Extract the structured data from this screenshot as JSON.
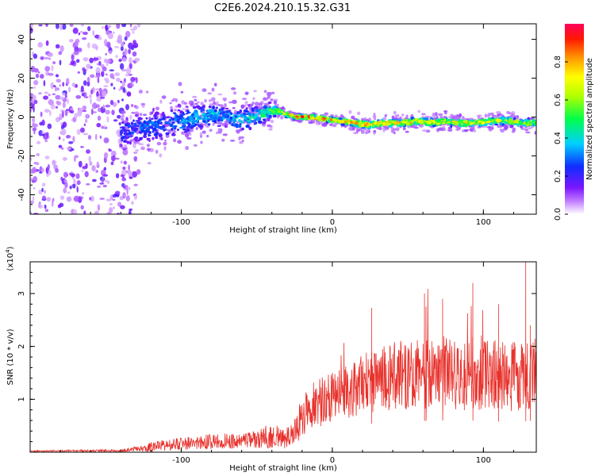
{
  "title": "C2E6.2024.210.15.32.G31",
  "chart_data": [
    {
      "type": "heatmap",
      "xlabel": "Height of straight line (km)",
      "ylabel": "Frequency (Hz)",
      "xlim": [
        -200,
        135
      ],
      "ylim": [
        -50,
        48
      ],
      "x_ticks": [
        {
          "value": -100,
          "label": "-100"
        },
        {
          "value": 0,
          "label": "0"
        },
        {
          "value": 100,
          "label": "100"
        }
      ],
      "y_ticks": [
        {
          "value": -40,
          "label": "-40"
        },
        {
          "value": -20,
          "label": "-20"
        },
        {
          "value": 0,
          "label": "0"
        },
        {
          "value": 20,
          "label": "20"
        },
        {
          "value": 40,
          "label": "40"
        }
      ],
      "colorbar": {
        "label": "Normalized spectral amplitude",
        "range": [
          0,
          1
        ],
        "ticks": [
          {
            "value": 0.0,
            "label": "0.0"
          },
          {
            "value": 0.2,
            "label": "0.2"
          },
          {
            "value": 0.4,
            "label": "0.4"
          },
          {
            "value": 0.6,
            "label": "0.6"
          },
          {
            "value": 0.8,
            "label": "0.8"
          }
        ]
      },
      "noise_region_x": [
        -200,
        -128
      ],
      "ridge": {
        "x": [
          -140,
          -130,
          -120,
          -110,
          -100,
          -90,
          -80,
          -70,
          -60,
          -50,
          -42,
          -35,
          -25,
          -15,
          -5,
          5,
          15,
          25,
          35,
          45,
          55,
          65,
          75,
          85,
          95,
          105,
          115,
          125,
          135
        ],
        "freq": [
          -8,
          -6,
          -5,
          -4,
          -2,
          0,
          1,
          0,
          -2,
          1,
          3,
          3,
          0,
          0,
          -1,
          -2,
          -3,
          -4,
          -3,
          -3,
          -2,
          -3,
          -2,
          -3,
          -3,
          -2,
          -2,
          -3,
          -3
        ],
        "amplitude": [
          0.25,
          0.3,
          0.32,
          0.33,
          0.35,
          0.38,
          0.4,
          0.38,
          0.4,
          0.45,
          0.55,
          0.7,
          0.85,
          0.9,
          0.85,
          0.8,
          0.82,
          0.85,
          0.8,
          0.78,
          0.75,
          0.78,
          0.72,
          0.75,
          0.7,
          0.72,
          0.75,
          0.7,
          0.65
        ],
        "width_hz": [
          14,
          12,
          12,
          11,
          12,
          10,
          9,
          8,
          9,
          8,
          6,
          3,
          2,
          2,
          2,
          2,
          3,
          3,
          3,
          3,
          3,
          3,
          3,
          3,
          3,
          3,
          3,
          3,
          3
        ]
      }
    },
    {
      "type": "line",
      "xlabel": "Height of straight line (km)",
      "ylabel": "SNR (10 * v/v)",
      "y_multiplier": "(x10",
      "y_multiplier_exp": "4",
      "xlim": [
        -200,
        135
      ],
      "ylim": [
        0,
        3.6
      ],
      "x_ticks": [
        {
          "value": -100,
          "label": "-100"
        },
        {
          "value": 0,
          "label": "0"
        },
        {
          "value": 100,
          "label": "100"
        }
      ],
      "y_ticks": [
        {
          "value": 1,
          "label": "1"
        },
        {
          "value": 2,
          "label": "2"
        },
        {
          "value": 3,
          "label": "3"
        }
      ],
      "series": [
        {
          "color": "#e8322c",
          "envelope": {
            "x": [
              -200,
              -140,
              -130,
              -120,
              -100,
              -80,
              -60,
              -50,
              -40,
              -32,
              -28,
              -22,
              -15,
              -5,
              5,
              15,
              25,
              35,
              45,
              55,
              65,
              75,
              85,
              95,
              105,
              115,
              125,
              135
            ],
            "mean": [
              0.02,
              0.03,
              0.06,
              0.1,
              0.16,
              0.2,
              0.22,
              0.24,
              0.32,
              0.25,
              0.3,
              0.55,
              0.8,
              1.0,
              1.1,
              1.2,
              1.35,
              1.4,
              1.45,
              1.45,
              1.5,
              1.5,
              1.45,
              1.5,
              1.5,
              1.4,
              1.45,
              1.5
            ],
            "spread": [
              0.01,
              0.02,
              0.04,
              0.08,
              0.1,
              0.12,
              0.12,
              0.14,
              0.2,
              0.15,
              0.2,
              0.3,
              0.35,
              0.4,
              0.4,
              0.45,
              0.5,
              0.55,
              0.55,
              0.55,
              0.6,
              0.6,
              0.55,
              0.6,
              0.6,
              0.55,
              0.6,
              0.55
            ]
          },
          "spikes": [
            {
              "x": 26,
              "y": 2.73
            },
            {
              "x": 61,
              "y": 3.0
            },
            {
              "x": 62,
              "y": 2.75
            },
            {
              "x": 73,
              "y": 2.9
            },
            {
              "x": 93,
              "y": 3.2
            },
            {
              "x": 110,
              "y": 2.8
            },
            {
              "x": 128,
              "y": 3.6
            },
            {
              "x": 131,
              "y": 2.4
            }
          ]
        }
      ]
    }
  ]
}
